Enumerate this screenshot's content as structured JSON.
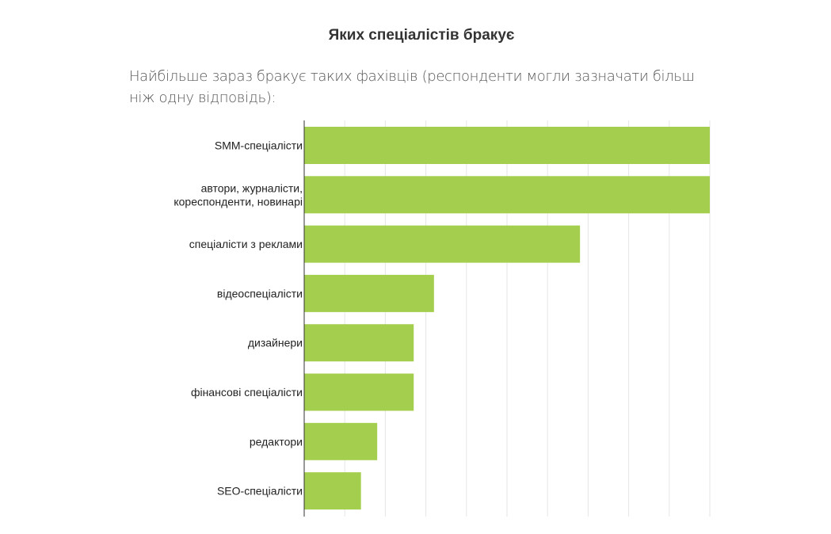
{
  "header": {
    "title": "Яких спеціалістів бракує",
    "lead": "Найбільше зараз бракує таких фахівців (респонденти могли зазначати більш ніж одну відповідь):"
  },
  "colors": {
    "bar": "#a4cf4e",
    "grid": "#e6e6e6",
    "axis": "#333333",
    "text": "#222222"
  },
  "chart_data": {
    "type": "bar",
    "orientation": "horizontal",
    "title": "",
    "xlabel": "",
    "ylabel": "",
    "categories": [
      [
        "SMM-спеціалісти"
      ],
      [
        "автори, журналісти,",
        "кореспонденти, новинарі"
      ],
      [
        "спеціалісти з реклами"
      ],
      [
        "відеоспеціалісти"
      ],
      [
        "дизайнери"
      ],
      [
        "фінансові спеціалісти"
      ],
      [
        "редактори"
      ],
      [
        "SEO-спеціалісти"
      ]
    ],
    "values": [
      100,
      100,
      68,
      32,
      27,
      27,
      18,
      14
    ],
    "xlim": [
      0,
      100
    ],
    "grid": true,
    "legend": "none"
  }
}
